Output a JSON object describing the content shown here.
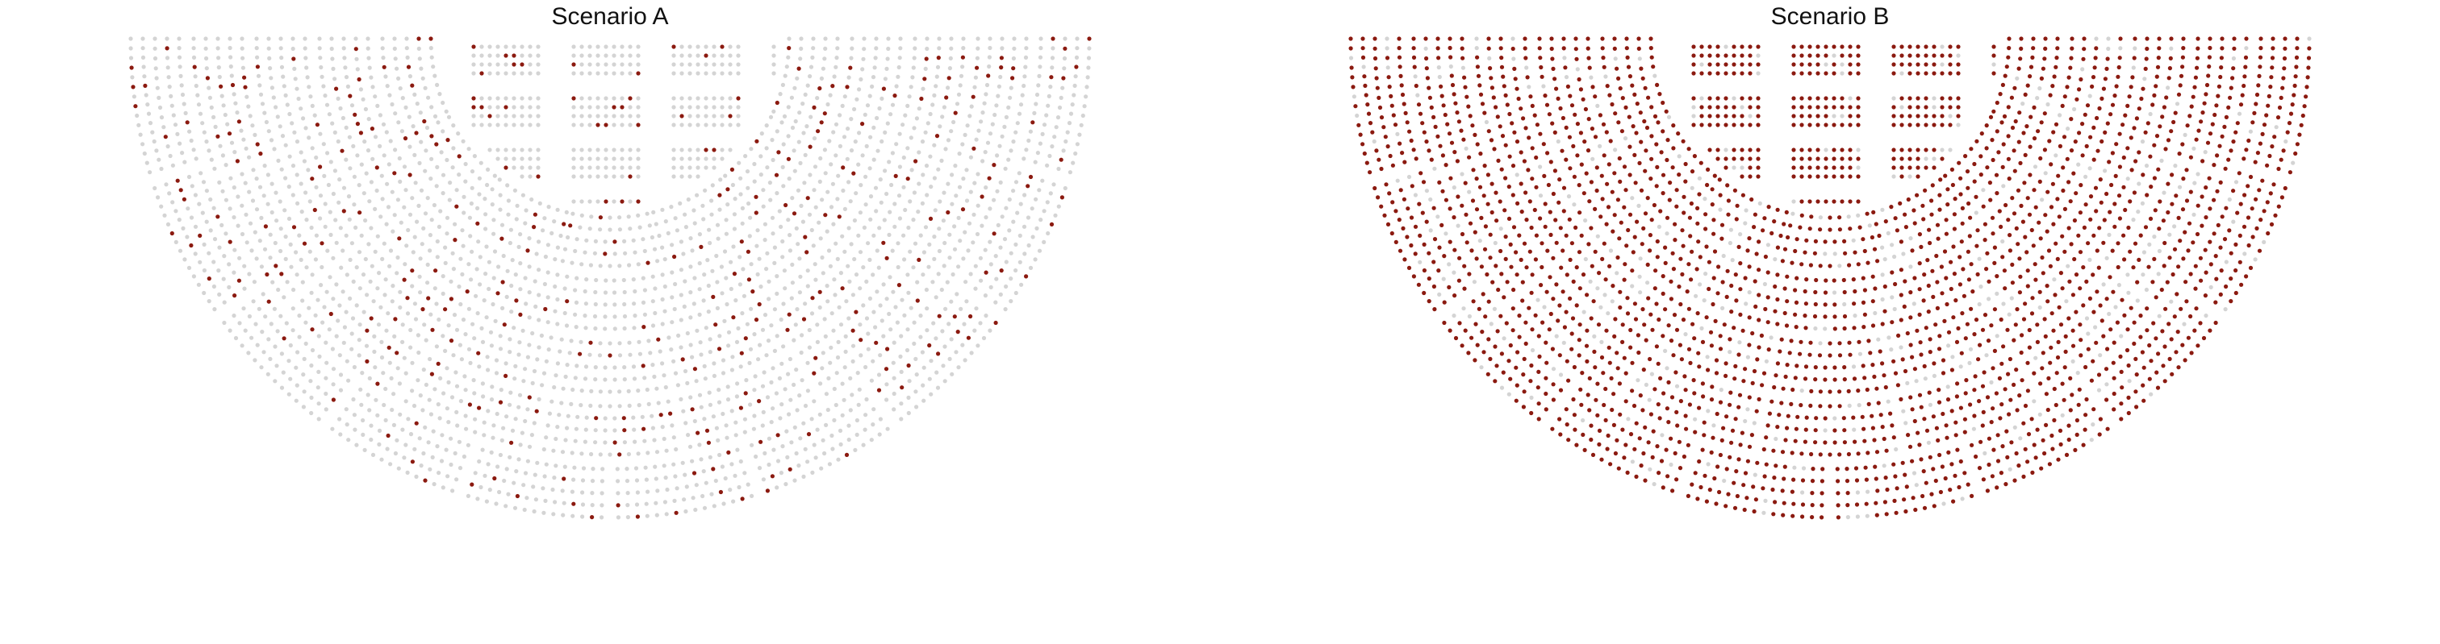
{
  "chart_data": [
    {
      "type": "scatter",
      "title": "Scenario A",
      "layout": "semicircular seating plan",
      "sections": {
        "rings": 5,
        "blocks_per_ring": [
          7,
          8,
          9,
          9,
          10
        ],
        "seats_per_block_rows": 5,
        "center_grid_blocks": [
          5,
          5
        ]
      },
      "approx_filled_fraction": 0.12,
      "colors": {
        "filled": "#8b1a10",
        "empty": "#d4d4d4"
      }
    },
    {
      "type": "scatter",
      "title": "Scenario B",
      "layout": "semicircular seating plan",
      "sections": {
        "rings": 5,
        "blocks_per_ring": [
          7,
          8,
          9,
          9,
          10
        ],
        "seats_per_block_rows": 5,
        "center_grid_blocks": [
          5,
          5
        ]
      },
      "approx_filled_fraction": 0.85,
      "colors": {
        "filled": "#8b1a10",
        "empty": "#d4d4d4"
      }
    }
  ]
}
